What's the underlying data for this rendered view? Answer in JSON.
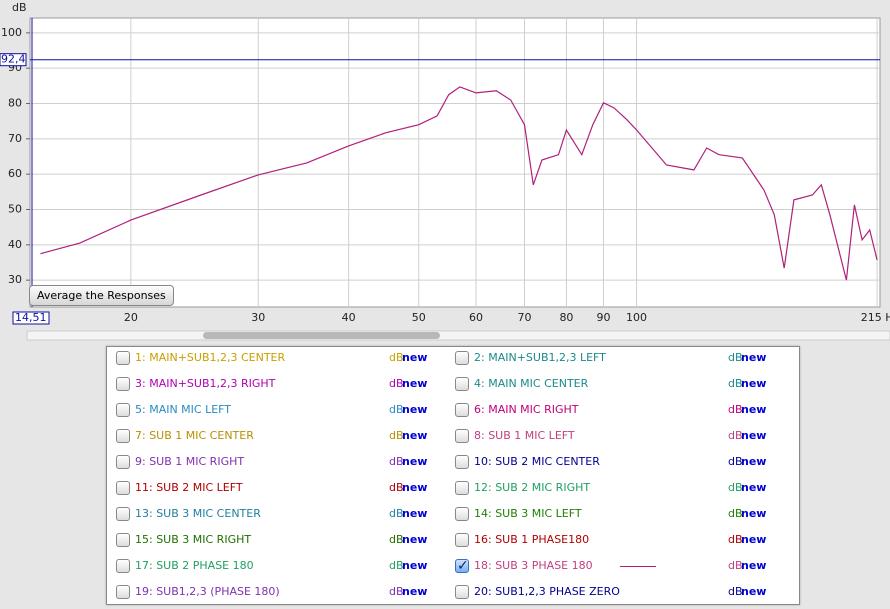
{
  "chart_data": {
    "type": "line",
    "y_label": "dB",
    "x": [
      15,
      17,
      20,
      25,
      30,
      35,
      40,
      45,
      50,
      53,
      55,
      57,
      60,
      64,
      67,
      70,
      72,
      74,
      78,
      80,
      84,
      87,
      90,
      93,
      97,
      100,
      110,
      120,
      125,
      130,
      140,
      150,
      155,
      160,
      165,
      175,
      180,
      185,
      195,
      200,
      205,
      210,
      215
    ],
    "series": [
      {
        "color": "#b0207a",
        "values": [
          37.5,
          40.5,
          47,
          54.1,
          59.8,
          63.2,
          68,
          71.7,
          74,
          76.5,
          82.5,
          84.7,
          83,
          83.6,
          81,
          74,
          57,
          64,
          65.5,
          72.5,
          65.5,
          74,
          80.2,
          78.8,
          75.4,
          72.5,
          62.6,
          61.2,
          67.4,
          65.5,
          64.6,
          55.5,
          48.5,
          33.4,
          52.7,
          54.1,
          57,
          48.5,
          30,
          51.3,
          41.4,
          44.2,
          35.7
        ]
      }
    ],
    "xlim": [
      14.51,
      217
    ],
    "ylim": [
      22.4,
      104.2
    ],
    "xticks": [
      20,
      30,
      40,
      50,
      60,
      70,
      80,
      90,
      100,
      {
        "value": 215,
        "label": "215 H"
      }
    ],
    "yticks": [
      30,
      40,
      50,
      60,
      70,
      80,
      90,
      100
    ],
    "x_log": true,
    "grid": true,
    "cursor": {
      "x": {
        "value": 14.51,
        "label": "14,51"
      },
      "y": {
        "value": 92.4,
        "label": "92,4"
      },
      "color": "#1010a0"
    }
  },
  "controls": {
    "average_button": "Average the Responses"
  },
  "measurements": {
    "unit_label": "dB",
    "new_label": "new",
    "items": [
      {
        "label": "1: MAIN+SUB1,2,3 CENTER",
        "color": "#c8a000",
        "checked": false
      },
      {
        "label": "2: MAIN+SUB1,2,3 LEFT",
        "color": "#1a8a8a",
        "checked": false
      },
      {
        "label": "3: MAIN+SUB1,2,3 RIGHT",
        "color": "#b000b0",
        "checked": false
      },
      {
        "label": "4: MAIN MIC CENTER",
        "color": "#1a8a8a",
        "checked": false
      },
      {
        "label": "5: MAIN MIC LEFT",
        "color": "#2a8ac0",
        "checked": false
      },
      {
        "label": "6: MAIN MIC RIGHT",
        "color": "#c0007a",
        "checked": false
      },
      {
        "label": "7: SUB 1 MIC CENTER",
        "color": "#b89000",
        "checked": false
      },
      {
        "label": "8: SUB 1 MIC LEFT",
        "color": "#c04080",
        "checked": false
      },
      {
        "label": "9: SUB 1 MIC RIGHT",
        "color": "#8030b0",
        "checked": false
      },
      {
        "label": "10: SUB 2 MIC CENTER",
        "color": "#000090",
        "checked": false
      },
      {
        "label": "11: SUB 2 MIC LEFT",
        "color": "#b00000",
        "checked": false
      },
      {
        "label": "12: SUB 2 MIC RIGHT",
        "color": "#20a060",
        "checked": false
      },
      {
        "label": "13: SUB 3 MIC CENTER",
        "color": "#2080a0",
        "checked": false
      },
      {
        "label": "14: SUB 3 MIC LEFT",
        "color": "#208000",
        "checked": false
      },
      {
        "label": "15: SUB 3 MIC RIGHT",
        "color": "#207000",
        "checked": false
      },
      {
        "label": "16: SUB 1 PHASE180",
        "color": "#b00000",
        "checked": false
      },
      {
        "label": "17: SUB 2 PHASE 180",
        "color": "#20a060",
        "checked": false
      },
      {
        "label": "18: SUB 3 PHASE 180",
        "color": "#c04080",
        "checked": true
      },
      {
        "label": "19: SUB1,2,3 (PHASE 180)",
        "color": "#8030b0",
        "checked": false
      },
      {
        "label": "20: SUB1,2,3 PHASE ZERO",
        "color": "#000090",
        "checked": false
      }
    ]
  }
}
